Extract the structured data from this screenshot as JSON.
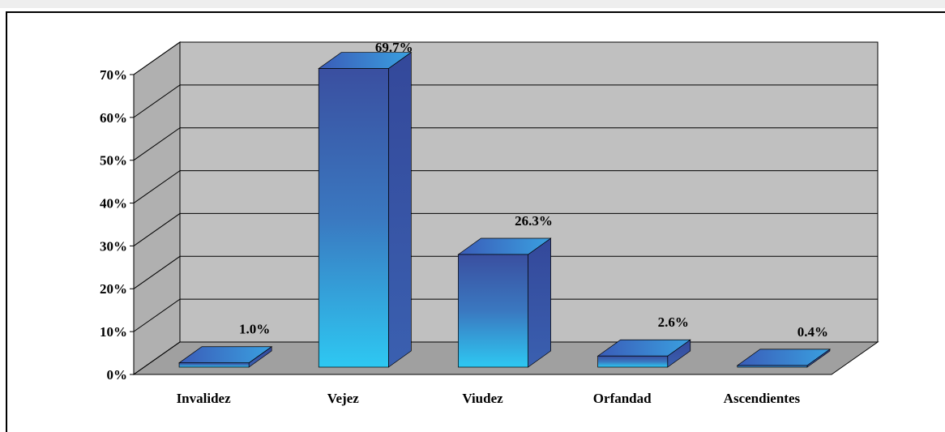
{
  "chart_data": {
    "type": "bar3d",
    "categories": [
      "Invalidez",
      "Vejez",
      "Viudez",
      "Orfandad",
      "Ascendientes"
    ],
    "values": [
      1.0,
      69.7,
      26.3,
      2.6,
      0.4
    ],
    "value_labels": [
      "1.0%",
      "69.7%",
      "26.3%",
      "2.6%",
      "0.4%"
    ],
    "ylim": [
      0,
      70
    ],
    "yticks": [
      {
        "value": 0,
        "label": "0%"
      },
      {
        "value": 10,
        "label": "10%"
      },
      {
        "value": 20,
        "label": "20%"
      },
      {
        "value": 30,
        "label": "30%"
      },
      {
        "value": 40,
        "label": "40%"
      },
      {
        "value": 50,
        "label": "50%"
      },
      {
        "value": 60,
        "label": "60%"
      },
      {
        "value": 70,
        "label": "70%"
      }
    ],
    "grid": true,
    "color": "#3a4fa0"
  }
}
